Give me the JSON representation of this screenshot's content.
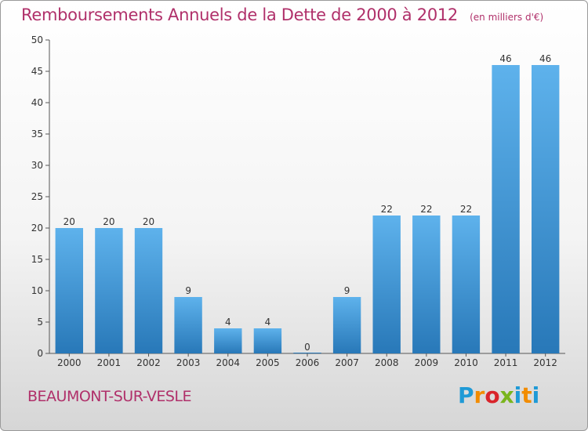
{
  "title": "Remboursements Annuels de la Dette de 2000 à 2012",
  "subtitle": "(en milliers d'€)",
  "commune": "BEAUMONT-SUR-VESLE",
  "logo_text": "Proxiti",
  "colors": {
    "bar": "#3a95d8",
    "title": "#b0306a",
    "axis": "#333333"
  },
  "chart_data": {
    "type": "bar",
    "title": "Remboursements Annuels de la Dette de 2000 à 2012",
    "subtitle": "(en milliers d'€)",
    "xlabel": "",
    "ylabel": "",
    "categories": [
      "2000",
      "2001",
      "2002",
      "2003",
      "2004",
      "2005",
      "2006",
      "2007",
      "2008",
      "2009",
      "2010",
      "2011",
      "2012"
    ],
    "values": [
      20,
      20,
      20,
      9,
      4,
      4,
      0,
      9,
      22,
      22,
      22,
      46,
      46
    ],
    "ylim": [
      0,
      50
    ],
    "yticks": [
      0,
      5,
      10,
      15,
      20,
      25,
      30,
      35,
      40,
      45,
      50
    ],
    "grid": false,
    "legend": "none"
  }
}
